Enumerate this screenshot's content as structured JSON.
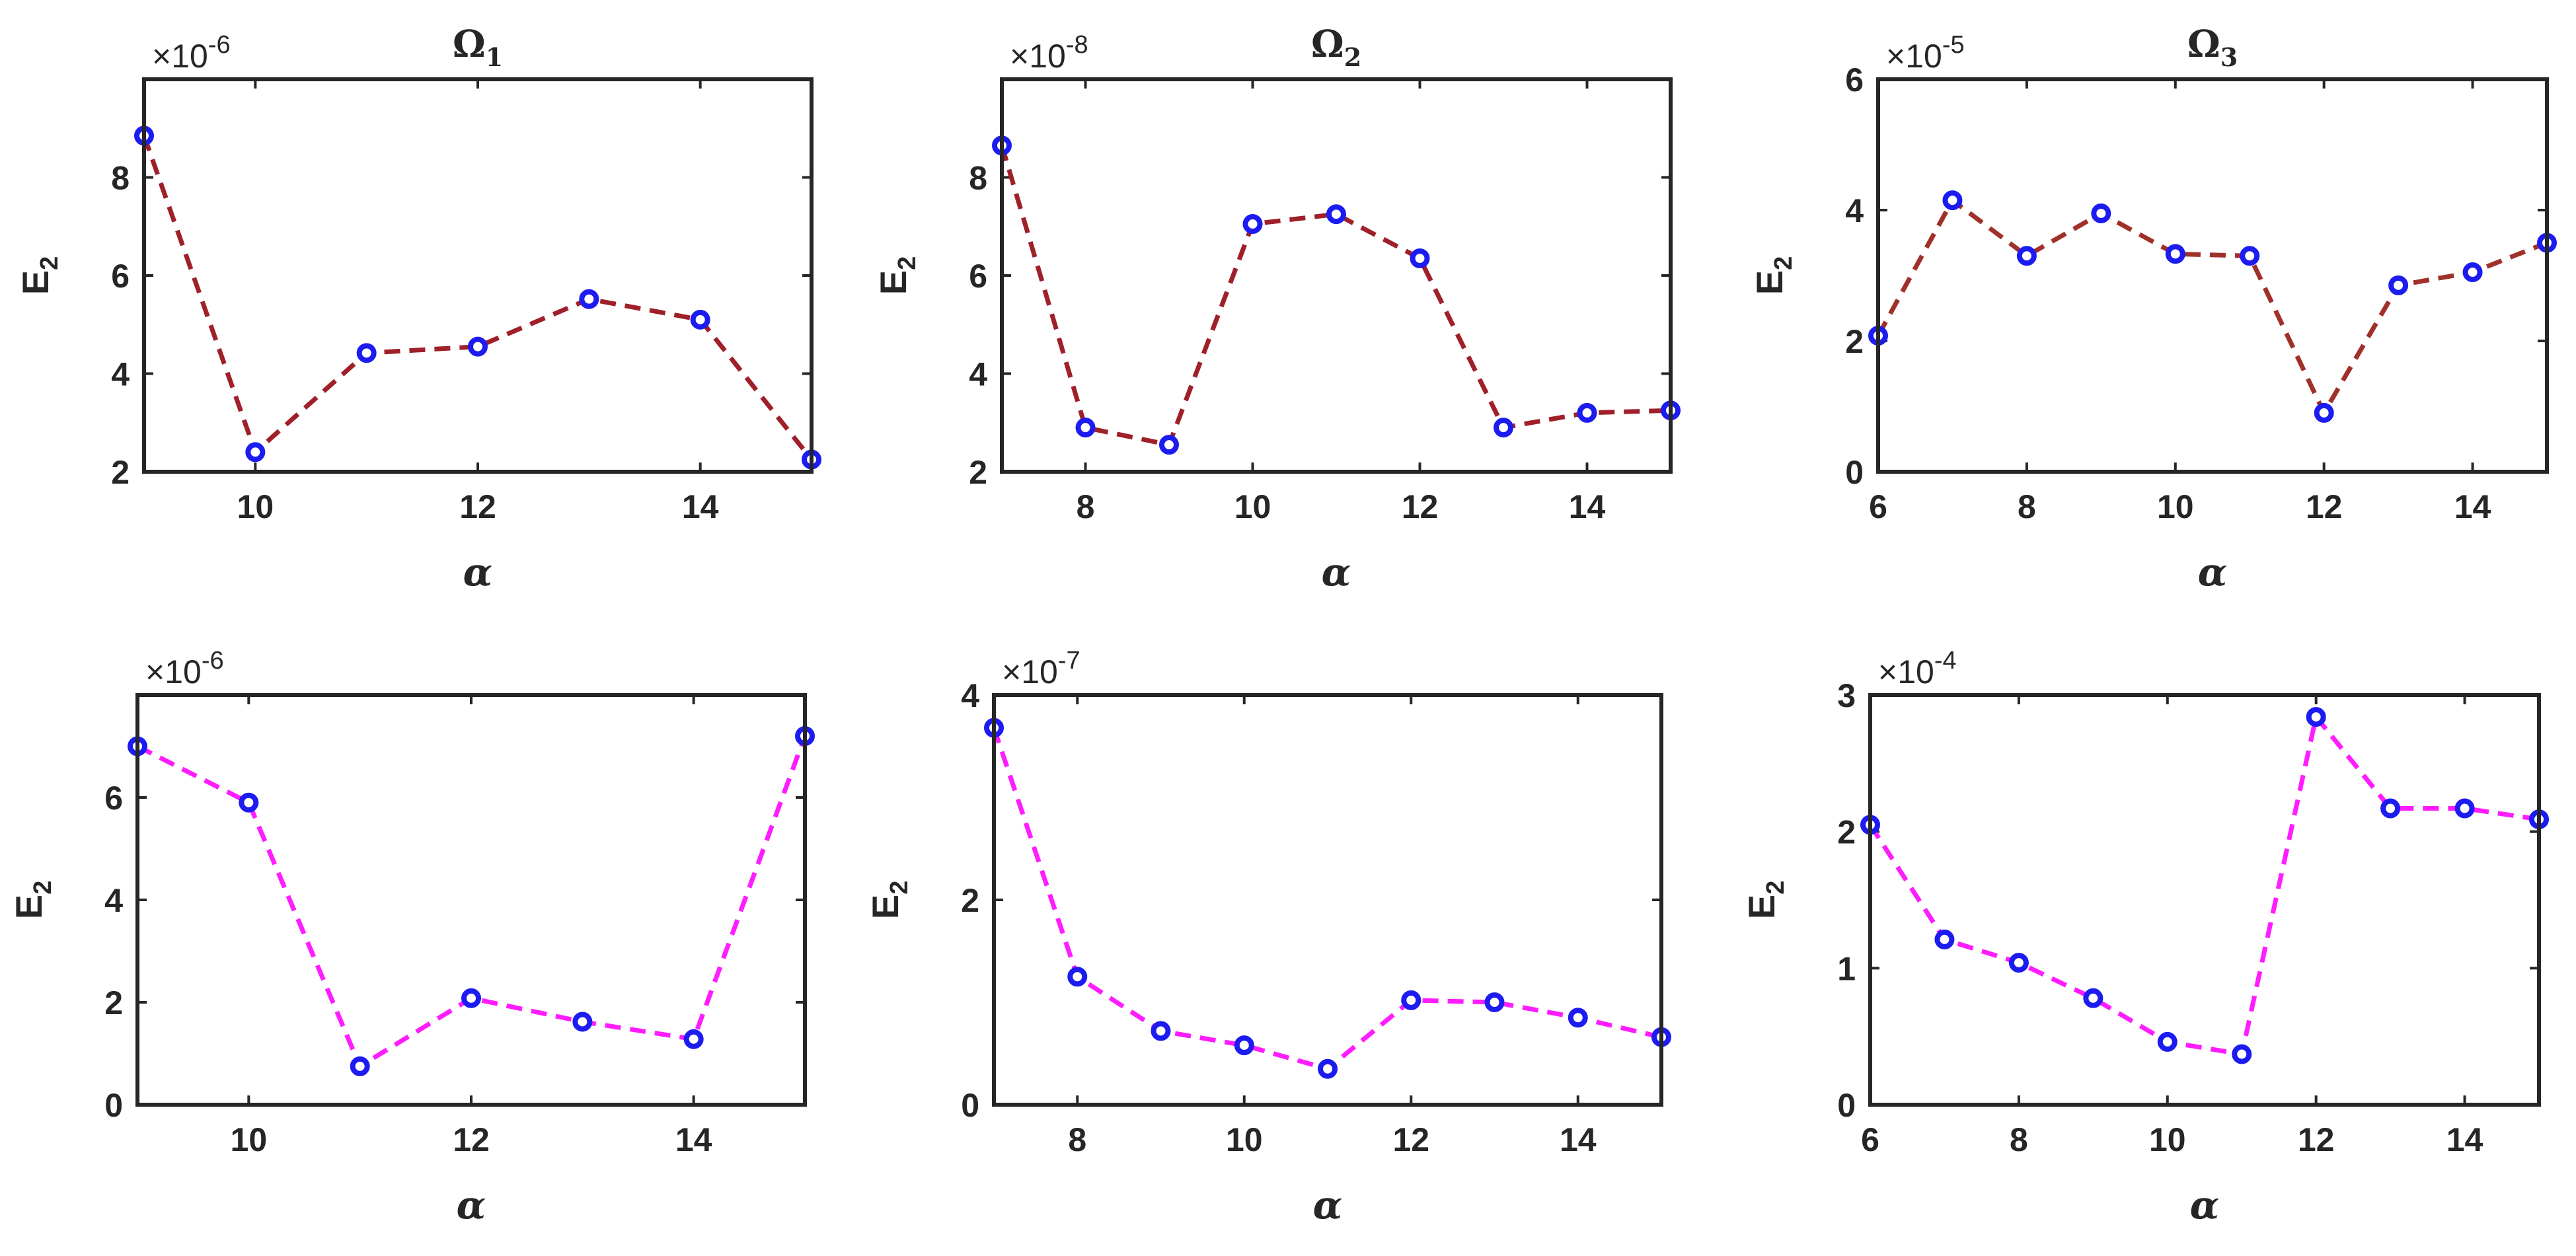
{
  "chart_data": [
    {
      "type": "line",
      "title": "Ω1",
      "title_main": "Ω",
      "title_sub": "1",
      "xlabel": "α",
      "ylabel_main": "E",
      "ylabel_sub": "2",
      "multiplier_base": "×10",
      "multiplier_exp": "-6",
      "xlim": [
        9,
        15
      ],
      "ylim": [
        2,
        10
      ],
      "xticks": [
        10,
        12,
        14
      ],
      "yticks": [
        2,
        4,
        6,
        8
      ],
      "line_color": "#a0202a",
      "marker_color": "#1c1cf0",
      "series": [
        {
          "x": [
            9,
            10,
            11,
            12,
            13,
            14,
            15
          ],
          "values": [
            8.85,
            2.4,
            4.42,
            4.55,
            5.52,
            5.1,
            2.25
          ]
        }
      ]
    },
    {
      "type": "line",
      "title": "Ω2",
      "title_main": "Ω",
      "title_sub": "2",
      "xlabel": "α",
      "ylabel_main": "E",
      "ylabel_sub": "2",
      "multiplier_base": "×10",
      "multiplier_exp": "-8",
      "xlim": [
        7,
        15
      ],
      "ylim": [
        2,
        10
      ],
      "xticks": [
        8,
        10,
        12,
        14
      ],
      "yticks": [
        2,
        4,
        6,
        8
      ],
      "line_color": "#a0202a",
      "marker_color": "#1c1cf0",
      "series": [
        {
          "x": [
            7,
            8,
            9,
            10,
            11,
            12,
            13,
            14,
            15
          ],
          "values": [
            8.65,
            2.9,
            2.55,
            7.05,
            7.25,
            6.35,
            2.9,
            3.2,
            3.25
          ]
        }
      ]
    },
    {
      "type": "line",
      "title": "Ω3",
      "title_main": "Ω",
      "title_sub": "3",
      "xlabel": "α",
      "ylabel_main": "E",
      "ylabel_sub": "2",
      "multiplier_base": "×10",
      "multiplier_exp": "-5",
      "xlim": [
        6,
        15
      ],
      "ylim": [
        0,
        6
      ],
      "xticks": [
        6,
        8,
        10,
        12,
        14
      ],
      "yticks": [
        0,
        2,
        4,
        6
      ],
      "line_color": "#a0302a",
      "marker_color": "#1c1cf0",
      "series": [
        {
          "x": [
            6,
            7,
            8,
            9,
            10,
            11,
            12,
            13,
            14,
            15
          ],
          "values": [
            2.08,
            4.15,
            3.3,
            3.95,
            3.33,
            3.3,
            0.9,
            2.85,
            3.05,
            3.5
          ]
        }
      ]
    },
    {
      "type": "line",
      "title": "",
      "xlabel": "α",
      "ylabel_main": "E",
      "ylabel_sub": "2",
      "multiplier_base": "×10",
      "multiplier_exp": "-6",
      "xlim": [
        9,
        15
      ],
      "ylim": [
        0,
        8
      ],
      "xticks": [
        10,
        12,
        14
      ],
      "yticks": [
        0,
        2,
        4,
        6
      ],
      "line_color": "#ff1cff",
      "marker_color": "#1c1cf0",
      "series": [
        {
          "x": [
            9,
            10,
            11,
            12,
            13,
            14,
            15
          ],
          "values": [
            7.0,
            5.9,
            0.75,
            2.08,
            1.62,
            1.28,
            7.2
          ]
        }
      ]
    },
    {
      "type": "line",
      "title": "",
      "xlabel": "α",
      "ylabel_main": "E",
      "ylabel_sub": "2",
      "multiplier_base": "×10",
      "multiplier_exp": "-7",
      "xlim": [
        7,
        15
      ],
      "ylim": [
        0,
        4
      ],
      "xticks": [
        8,
        10,
        12,
        14
      ],
      "yticks": [
        0,
        2,
        4
      ],
      "line_color": "#ff1cff",
      "marker_color": "#1c1cf0",
      "series": [
        {
          "x": [
            7,
            8,
            9,
            10,
            11,
            12,
            13,
            14,
            15
          ],
          "values": [
            3.68,
            1.25,
            0.72,
            0.58,
            0.35,
            1.02,
            1.0,
            0.85,
            0.66
          ]
        }
      ]
    },
    {
      "type": "line",
      "title": "",
      "xlabel": "α",
      "ylabel_main": "E",
      "ylabel_sub": "2",
      "multiplier_base": "×10",
      "multiplier_exp": "-4",
      "xlim": [
        6,
        15
      ],
      "ylim": [
        0,
        3
      ],
      "xticks": [
        6,
        8,
        10,
        12,
        14
      ],
      "yticks": [
        0,
        1,
        2,
        3
      ],
      "line_color": "#ff1cff",
      "marker_color": "#1c1cf0",
      "series": [
        {
          "x": [
            6,
            7,
            8,
            9,
            10,
            11,
            12,
            13,
            14,
            15
          ],
          "values": [
            2.05,
            1.21,
            1.04,
            0.78,
            0.46,
            0.37,
            2.84,
            2.17,
            2.17,
            2.09
          ]
        }
      ]
    }
  ]
}
